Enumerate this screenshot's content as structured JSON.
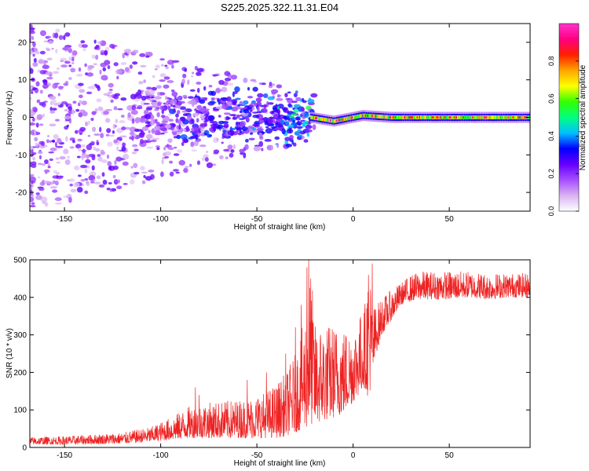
{
  "title": "S225.2025.322.11.31.E04",
  "colors": {
    "snr_line": "#ee2222",
    "frame": "#000000",
    "colormap": [
      "#ffffff",
      "#d9b3f2",
      "#a64dff",
      "#6600ff",
      "#0000ff",
      "#00c0ff",
      "#00ff80",
      "#33ff00",
      "#ffff00",
      "#ffa500",
      "#ff2000",
      "#ff0080",
      "#ff33cc"
    ]
  },
  "chart_data": [
    {
      "type": "heatmap",
      "title": "S225.2025.322.11.31.E04",
      "xlabel": "Height of straight line (km)",
      "ylabel": "Frequency (Hz)",
      "xlim": [
        -168,
        92
      ],
      "ylim": [
        -25,
        25
      ],
      "x_ticks": [
        -150,
        -100,
        -50,
        0,
        50
      ],
      "x_tick_labels": [
        "-150",
        "-100",
        "-50",
        "0",
        "50"
      ],
      "y_ticks": [
        -20,
        -10,
        0,
        10,
        20
      ],
      "y_tick_labels": [
        "-20",
        "-10",
        "0",
        "10",
        "20"
      ],
      "colorbar": {
        "label": "Normalized spectral amplitude",
        "range": [
          0,
          1
        ],
        "ticks": [
          0.0,
          0.2,
          0.4,
          0.6,
          0.8
        ],
        "tick_labels": [
          "0.0",
          "0.2",
          "0.4",
          "0.6",
          "0.8"
        ]
      },
      "trace": {
        "description": "narrow spectral line near 0 Hz for heights above about -22 km, scattered broadband noise below",
        "line_start_km": -22,
        "line_center_hz": [
          [
            -22,
            0
          ],
          [
            -10,
            -1
          ],
          [
            0,
            0
          ],
          [
            5,
            0.5
          ],
          [
            20,
            0
          ],
          [
            92,
            0
          ]
        ]
      }
    },
    {
      "type": "line",
      "title": "",
      "xlabel": "Height of straight line (km)",
      "ylabel": "SNR (10 * v/v)",
      "xlim": [
        -168,
        92
      ],
      "ylim": [
        0,
        500
      ],
      "x_ticks": [
        -150,
        -100,
        -50,
        0,
        50
      ],
      "x_tick_labels": [
        "-150",
        "-100",
        "-50",
        "0",
        "50"
      ],
      "y_ticks": [
        0,
        100,
        200,
        300,
        400,
        500
      ],
      "y_tick_labels": [
        "0",
        "100",
        "200",
        "300",
        "400",
        "500"
      ],
      "series": [
        {
          "name": "SNR",
          "envelope_x": [
            -168,
            -150,
            -120,
            -105,
            -95,
            -85,
            -75,
            -65,
            -55,
            -45,
            -40,
            -35,
            -30,
            -25,
            -22,
            -20,
            -15,
            -10,
            -5,
            0,
            3,
            6,
            8,
            10,
            12,
            15,
            20,
            25,
            30,
            35,
            40,
            50,
            60,
            70,
            80,
            92
          ],
          "envelope_low": [
            8,
            8,
            10,
            15,
            20,
            25,
            25,
            25,
            25,
            25,
            25,
            30,
            40,
            50,
            60,
            60,
            70,
            80,
            90,
            120,
            140,
            160,
            130,
            180,
            250,
            300,
            340,
            380,
            390,
            395,
            395,
            395,
            400,
            395,
            400,
            400
          ],
          "envelope_high": [
            28,
            30,
            40,
            55,
            80,
            110,
            120,
            125,
            130,
            150,
            170,
            200,
            250,
            350,
            500,
            330,
            330,
            330,
            320,
            320,
            350,
            380,
            490,
            380,
            380,
            400,
            420,
            440,
            460,
            470,
            470,
            470,
            470,
            465,
            465,
            465
          ],
          "spikes": [
            [
              -27,
              380
            ],
            [
              -23,
              500
            ],
            [
              -22,
              450
            ],
            [
              -24,
              480
            ],
            [
              -30,
              320
            ],
            [
              -35,
              250
            ],
            [
              -45,
              200
            ],
            [
              -55,
              180
            ],
            [
              -82,
              160
            ],
            [
              -80,
              140
            ],
            [
              10,
              490
            ],
            [
              8,
              460
            ],
            [
              9,
              420
            ]
          ]
        }
      ]
    }
  ]
}
